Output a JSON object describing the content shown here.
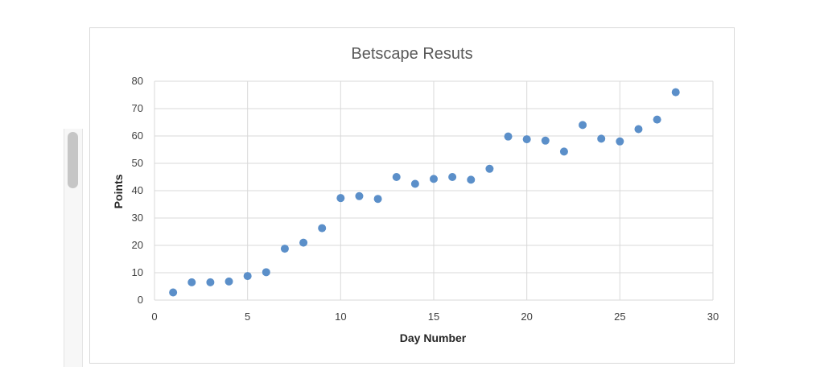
{
  "chart_data": {
    "type": "scatter",
    "title": "Betscape Resuts",
    "xlabel": "Day Number",
    "ylabel": "Points",
    "xlim": [
      0,
      30
    ],
    "ylim": [
      0,
      80
    ],
    "xticks": [
      0,
      5,
      10,
      15,
      20,
      25,
      30
    ],
    "yticks": [
      0,
      10,
      20,
      30,
      40,
      50,
      60,
      70,
      80
    ],
    "grid": true,
    "legend": "none",
    "marker_color": "#5b8fc9",
    "points": [
      {
        "x": 1,
        "y": 2.8
      },
      {
        "x": 2,
        "y": 6.5
      },
      {
        "x": 3,
        "y": 6.5
      },
      {
        "x": 4,
        "y": 6.8
      },
      {
        "x": 5,
        "y": 8.8
      },
      {
        "x": 6,
        "y": 10.2
      },
      {
        "x": 7,
        "y": 18.8
      },
      {
        "x": 8,
        "y": 21.0
      },
      {
        "x": 9,
        "y": 26.3
      },
      {
        "x": 10,
        "y": 37.3
      },
      {
        "x": 11,
        "y": 38.0
      },
      {
        "x": 12,
        "y": 37.0
      },
      {
        "x": 13,
        "y": 45.0
      },
      {
        "x": 14,
        "y": 42.5
      },
      {
        "x": 15,
        "y": 44.3
      },
      {
        "x": 16,
        "y": 45.0
      },
      {
        "x": 17,
        "y": 44.0
      },
      {
        "x": 18,
        "y": 48.0
      },
      {
        "x": 19,
        "y": 59.8
      },
      {
        "x": 20,
        "y": 58.8
      },
      {
        "x": 21,
        "y": 58.3
      },
      {
        "x": 22,
        "y": 54.3
      },
      {
        "x": 23,
        "y": 64.0
      },
      {
        "x": 24,
        "y": 59.0
      },
      {
        "x": 25,
        "y": 58.0
      },
      {
        "x": 26,
        "y": 62.5
      },
      {
        "x": 27,
        "y": 66.0
      },
      {
        "x": 28,
        "y": 76.0
      }
    ]
  }
}
